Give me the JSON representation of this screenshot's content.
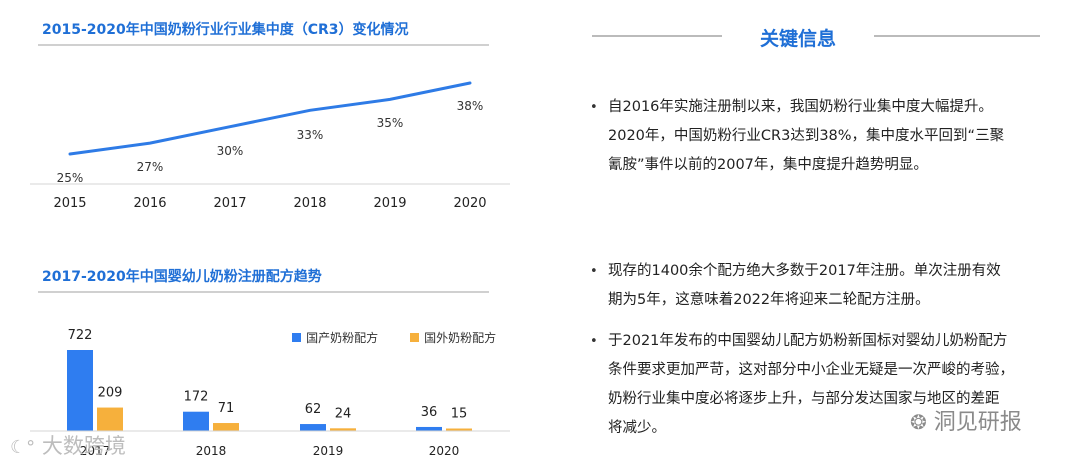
{
  "left": {
    "cr3_title": "2015-2020年中国奶粉行业行业集中度（CR3）变化情况",
    "formula_title": "2017-2020年中国婴幼儿奶粉注册配方趋势"
  },
  "right": {
    "key_title": "关键信息",
    "bullets": [
      {
        "lines": [
          "自2016年实施注册制以来，我国奶粉行业集中度大幅提升。",
          "2020年，中国奶粉行业CR3达到38%，集中度水平回到“三聚",
          "氰胺”事件以前的2007年，集中度提升趋势明显。"
        ]
      },
      {
        "lines": [
          "现存的1400余个配方绝大多数于2017年注册。单次注册有效",
          "期为5年，这意味着2022年将迎来二轮配方注册。"
        ]
      },
      {
        "lines": [
          "于2021年发布的中国婴幼儿配方奶粉新国标对婴幼儿奶粉配方",
          "条件要求更加严苛，这对部分中小企业无疑是一次严峻的考验，",
          "奶粉行业集中度必将逐步上升，与部分发达国家与地区的差距",
          "将减少。"
        ]
      }
    ]
  },
  "watermarks": {
    "left": "大数跨境",
    "right": "洞见研报"
  },
  "colors": {
    "title_blue": "#1f6fd6",
    "line_blue": "#2e7be6",
    "bar_domestic": "#2f7df0",
    "bar_foreign": "#f6b03c"
  },
  "chart_data": [
    {
      "type": "line",
      "title": "2015-2020年中国奶粉行业行业集中度（CR3）变化情况",
      "x": [
        "2015",
        "2016",
        "2017",
        "2018",
        "2019",
        "2020"
      ],
      "series": [
        {
          "values": [
            25,
            27,
            30,
            33,
            35,
            38
          ]
        }
      ],
      "data_labels": [
        "25%",
        "27%",
        "30%",
        "33%",
        "35%",
        "38%"
      ],
      "unit": "%",
      "grid": false
    },
    {
      "type": "bar",
      "title": "2017-2020年中国婴幼儿奶粉注册配方趋势",
      "categories": [
        "2017",
        "2018",
        "2019",
        "2020"
      ],
      "series": [
        {
          "name": "国产奶粉配方",
          "values": [
            722,
            172,
            62,
            36
          ]
        },
        {
          "name": "国外奶粉配方",
          "values": [
            209,
            71,
            24,
            15
          ]
        }
      ],
      "legend": "top-right",
      "grid": false
    }
  ]
}
